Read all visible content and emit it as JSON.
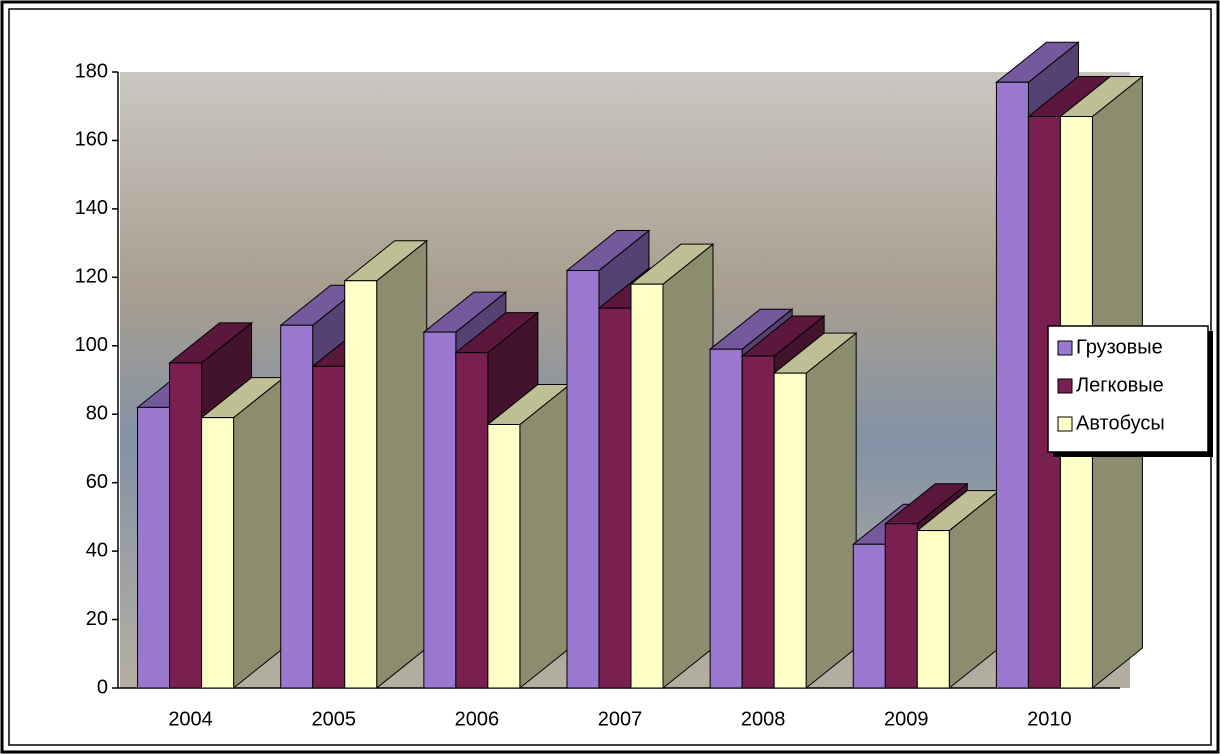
{
  "chart_data": {
    "type": "bar3d",
    "categories": [
      "2004",
      "2005",
      "2006",
      "2007",
      "2008",
      "2009",
      "2010"
    ],
    "series": [
      {
        "name": "Грузовые",
        "color": "#9a78d0",
        "values": [
          82,
          106,
          104,
          122,
          99,
          42,
          177
        ]
      },
      {
        "name": "Легковые",
        "color": "#7a2050",
        "values": [
          95,
          94,
          98,
          111,
          97,
          48,
          167
        ]
      },
      {
        "name": "Автобусы",
        "color": "#ffffc8",
        "values": [
          79,
          119,
          77,
          118,
          92,
          46,
          167
        ]
      }
    ],
    "ylim": [
      0,
      180
    ],
    "yticks": [
      0,
      20,
      40,
      60,
      80,
      100,
      120,
      140,
      160,
      180
    ],
    "legend": "right"
  }
}
